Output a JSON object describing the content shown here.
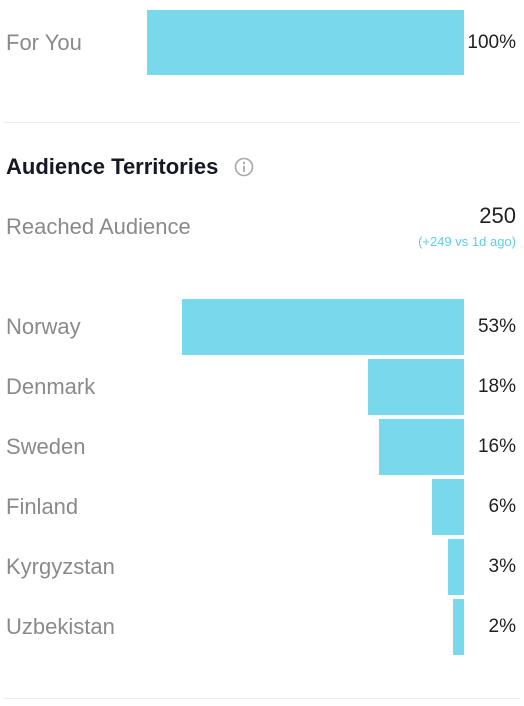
{
  "traffic_source": {
    "label": "For You",
    "value": "100%",
    "share": 1.0
  },
  "audience_territories": {
    "title": "Audience Territories",
    "info_icon": "info-icon",
    "reached_label": "Reached Audience",
    "reached_value": "250",
    "reached_delta": "(+249 vs 1d ago)",
    "bar_color": "#78d9ec",
    "countries": [
      {
        "name": "Norway",
        "value": "53%",
        "share": 0.53
      },
      {
        "name": "Denmark",
        "value": "18%",
        "share": 0.18
      },
      {
        "name": "Sweden",
        "value": "16%",
        "share": 0.16
      },
      {
        "name": "Finland",
        "value": "6%",
        "share": 0.06
      },
      {
        "name": "Kyrgyzstan",
        "value": "3%",
        "share": 0.03
      },
      {
        "name": "Uzbekistan",
        "value": "2%",
        "share": 0.02
      }
    ]
  }
}
